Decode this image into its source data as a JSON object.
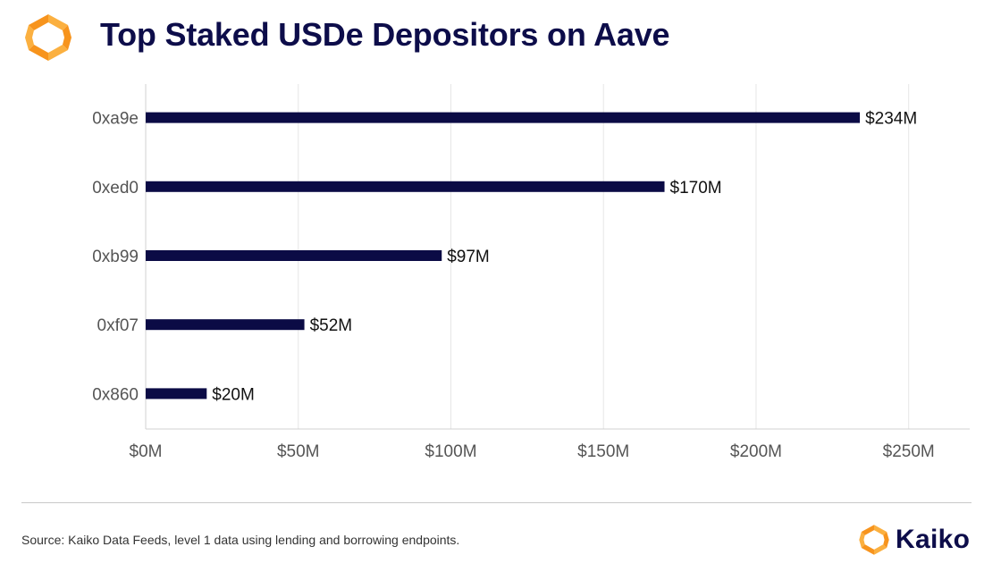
{
  "header": {
    "title": "Top Staked USDe Depositors on Aave"
  },
  "footer": {
    "source": "Source: Kaiko Data Feeds, level 1 data using lending and borrowing endpoints.",
    "brand": "Kaiko"
  },
  "colors": {
    "bar": "#0b0b45",
    "grid": "#e6e6e6",
    "axis_text": "#555555",
    "title": "#0d0d4a",
    "logo_orange": "#f7941d",
    "logo_yellow": "#fbb040"
  },
  "chart_data": {
    "type": "bar",
    "orientation": "horizontal",
    "title": "Top Staked USDe Depositors on Aave",
    "categories": [
      "0xa9e",
      "0xed0",
      "0xb99",
      "0xf07",
      "0x860"
    ],
    "values": [
      234,
      170,
      97,
      52,
      20
    ],
    "data_labels": [
      "$234M",
      "$170M",
      "$97M",
      "$52M",
      "$20M"
    ],
    "unit": "$M",
    "xlim": [
      0,
      270
    ],
    "xticks": [
      0,
      50,
      100,
      150,
      200,
      250
    ],
    "xtick_labels": [
      "$0M",
      "$50M",
      "$100M",
      "$150M",
      "$200M",
      "$250M"
    ],
    "xlabel": "",
    "ylabel": "",
    "grid": "vertical",
    "legend": "none"
  }
}
